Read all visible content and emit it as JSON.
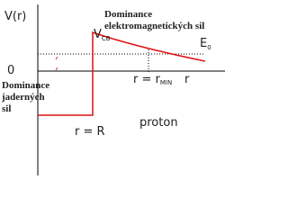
{
  "axis": {
    "y_label": "V(r)",
    "zero": "0"
  },
  "barrier": {
    "symbol": "V",
    "subscript": "CB"
  },
  "energy": {
    "symbol": "E",
    "subscript": "0"
  },
  "em_label": [
    "Dominance",
    "elektromagnetických sil"
  ],
  "nuclear_label": [
    "Dominance",
    "jaderných",
    "sil"
  ],
  "r_min": {
    "text": "r = r",
    "subscript": "MIN"
  },
  "r_axis": "r",
  "r_radius": "r = R",
  "particle": "proton"
}
